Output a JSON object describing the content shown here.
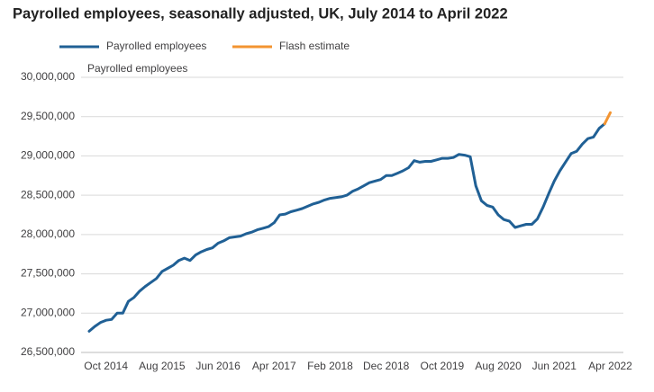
{
  "chart_data": {
    "type": "line",
    "title": "Payrolled employees, seasonally adjusted, UK, July 2014 to April 2022",
    "y_label": "Payrolled employees",
    "categories": [
      null,
      null,
      null,
      "Oct 2014",
      null,
      null,
      null,
      null,
      null,
      null,
      null,
      null,
      null,
      "Aug 2015",
      null,
      null,
      null,
      null,
      null,
      null,
      null,
      null,
      null,
      "Jun 2016",
      null,
      null,
      null,
      null,
      null,
      null,
      null,
      null,
      null,
      "Apr 2017",
      null,
      null,
      null,
      null,
      null,
      null,
      null,
      null,
      null,
      "Feb 2018",
      null,
      null,
      null,
      null,
      null,
      null,
      null,
      null,
      null,
      "Dec 2018",
      null,
      null,
      null,
      null,
      null,
      null,
      null,
      null,
      null,
      "Oct 2019",
      null,
      null,
      null,
      null,
      null,
      null,
      null,
      null,
      null,
      "Aug 2020",
      null,
      null,
      null,
      null,
      null,
      null,
      null,
      null,
      null,
      "Jun 2021",
      null,
      null,
      null,
      null,
      null,
      null,
      null,
      null,
      null,
      "Apr 2022"
    ],
    "series": [
      {
        "name": "Payrolled employees",
        "color": "#206095",
        "values": [
          26770000,
          26830000,
          26880000,
          26910000,
          26920000,
          27000000,
          27000000,
          27150000,
          27200000,
          27280000,
          27340000,
          27390000,
          27440000,
          27530000,
          27570000,
          27610000,
          27670000,
          27700000,
          27670000,
          27740000,
          27780000,
          27810000,
          27830000,
          27890000,
          27920000,
          27960000,
          27970000,
          27980000,
          28010000,
          28030000,
          28060000,
          28080000,
          28100000,
          28150000,
          28250000,
          28260000,
          28290000,
          28310000,
          28330000,
          28360000,
          28390000,
          28410000,
          28440000,
          28460000,
          28470000,
          28480000,
          28500000,
          28550000,
          28580000,
          28620000,
          28660000,
          28680000,
          28700000,
          28750000,
          28750000,
          28780000,
          28810000,
          28850000,
          28940000,
          28920000,
          28930000,
          28930000,
          28950000,
          28970000,
          28970000,
          28980000,
          29020000,
          29010000,
          28990000,
          28620000,
          28430000,
          28370000,
          28350000,
          28250000,
          28190000,
          28170000,
          28090000,
          28110000,
          28130000,
          28130000,
          28200000,
          28350000,
          28520000,
          28680000,
          28810000,
          28920000,
          29030000,
          29060000,
          29150000,
          29220000,
          29240000,
          29350000,
          29410000,
          null
        ]
      },
      {
        "name": "Flash estimate",
        "color": "#f39431",
        "values": [
          null,
          null,
          null,
          null,
          null,
          null,
          null,
          null,
          null,
          null,
          null,
          null,
          null,
          null,
          null,
          null,
          null,
          null,
          null,
          null,
          null,
          null,
          null,
          null,
          null,
          null,
          null,
          null,
          null,
          null,
          null,
          null,
          null,
          null,
          null,
          null,
          null,
          null,
          null,
          null,
          null,
          null,
          null,
          null,
          null,
          null,
          null,
          null,
          null,
          null,
          null,
          null,
          null,
          null,
          null,
          null,
          null,
          null,
          null,
          null,
          null,
          null,
          null,
          null,
          null,
          null,
          null,
          null,
          null,
          null,
          null,
          null,
          null,
          null,
          null,
          null,
          null,
          null,
          null,
          null,
          null,
          null,
          null,
          null,
          null,
          null,
          null,
          null,
          null,
          null,
          null,
          null,
          29410000,
          29550000
        ]
      }
    ],
    "ylim": [
      26500000,
      30000000
    ],
    "yticks": [
      {
        "value": 26500000,
        "label": "26,500,000"
      },
      {
        "value": 27000000,
        "label": "27,000,000"
      },
      {
        "value": 27500000,
        "label": "27,500,000"
      },
      {
        "value": 28000000,
        "label": "28,000,000"
      },
      {
        "value": 28500000,
        "label": "28,500,000"
      },
      {
        "value": 29000000,
        "label": "29,000,000"
      },
      {
        "value": 29500000,
        "label": "29,500,000"
      },
      {
        "value": 30000000,
        "label": "30,000,000"
      }
    ],
    "grid": true
  }
}
